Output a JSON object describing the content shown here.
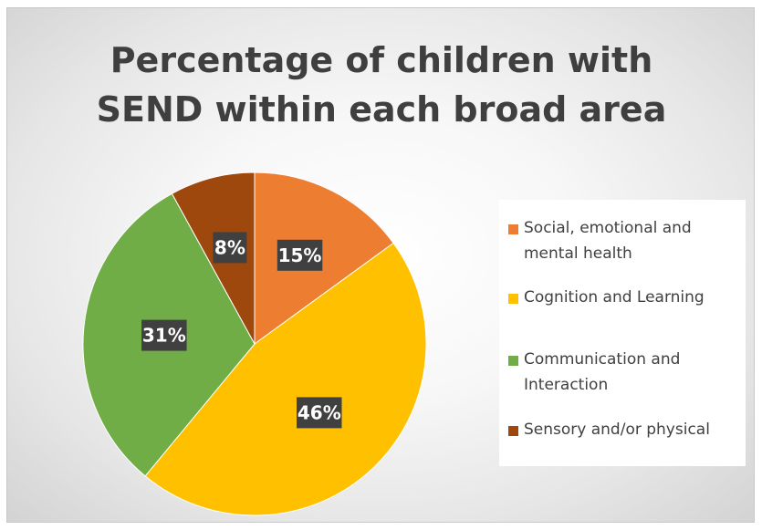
{
  "chart_data": {
    "type": "pie",
    "title_lines": [
      "Percentage of children with",
      "SEND within each broad area"
    ],
    "categories": [
      "Social, emotional and mental health",
      "Cognition and Learning",
      "Communication and Interaction",
      "Sensory and/or physical"
    ],
    "values": [
      15,
      46,
      31,
      8
    ],
    "data_labels": [
      "15%",
      "46%",
      "31%",
      "8%"
    ],
    "colors": [
      "#ED7D31",
      "#FFC000",
      "#70AD47",
      "#9E480E"
    ],
    "legend_position": "right",
    "legend_lines": [
      [
        "Social, emotional and",
        "mental health"
      ],
      [
        "Cognition and Learning"
      ],
      [
        "Communication and",
        "Interaction"
      ],
      [
        "Sensory and/or physical"
      ]
    ]
  }
}
